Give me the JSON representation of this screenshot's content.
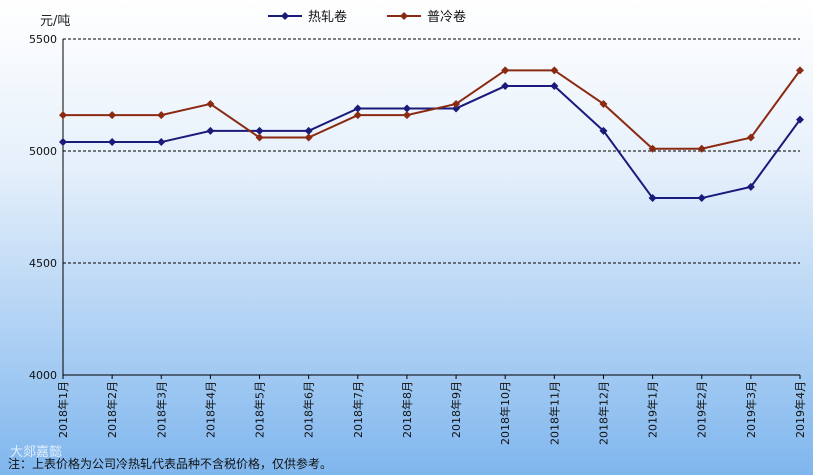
{
  "chart_data": {
    "type": "line",
    "ylabel": "元/吨",
    "ylim": [
      4000,
      5500
    ],
    "yticks": [
      4000,
      4500,
      5000,
      5500
    ],
    "grid": "horizontal dashed",
    "legend_position": "top",
    "categories": [
      "2018年1月",
      "2018年2月",
      "2018年3月",
      "2018年4月",
      "2018年5月",
      "2018年6月",
      "2018年7月",
      "2018年8月",
      "2018年9月",
      "2018年10月",
      "2018年11月",
      "2018年12月",
      "2019年1月",
      "2019年2月",
      "2019年3月",
      "2019年4月"
    ],
    "series": [
      {
        "name": "热轧卷",
        "color": "#1a1a7a",
        "marker": "diamond",
        "values": [
          5040,
          5040,
          5040,
          5090,
          5090,
          5090,
          5190,
          5190,
          5190,
          5290,
          5290,
          5090,
          4790,
          4790,
          4840,
          5140
        ]
      },
      {
        "name": "普冷卷",
        "color": "#8b2a12",
        "marker": "diamond",
        "values": [
          5160,
          5160,
          5160,
          5210,
          5060,
          5060,
          5160,
          5160,
          5210,
          5360,
          5360,
          5210,
          5010,
          5010,
          5060,
          5360
        ]
      }
    ]
  },
  "note": "注：上表价格为公司冷热轧代表品种不含税价格，仅供参考。",
  "watermark": "大郯嘉懿"
}
